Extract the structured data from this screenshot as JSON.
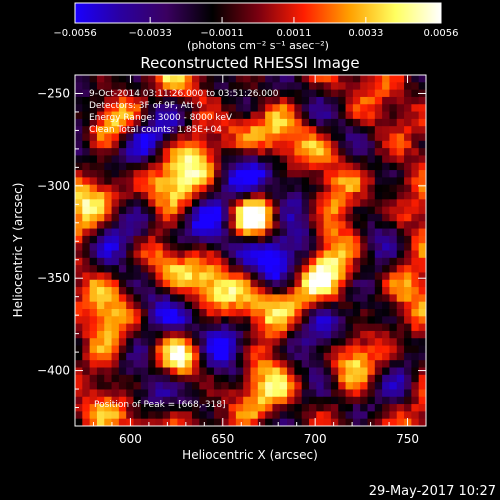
{
  "colorbar": {
    "ticks": [
      -0.0056,
      -0.0033,
      -0.0011,
      0.0011,
      0.0033,
      0.0056
    ],
    "tick_labels": [
      "−0.0056",
      "−0.0033",
      "−0.0011",
      "0.0011",
      "0.0033",
      "0.0056"
    ],
    "unit_label": "(photons cm⁻² s⁻¹ asec⁻²)",
    "range": [
      -0.0056,
      0.0056
    ],
    "colors": [
      "#1a00ff",
      "#2a00a0",
      "#3a0060",
      "#000000",
      "#7a0010",
      "#ff1e00",
      "#ffa000",
      "#ffff60",
      "#ffffff"
    ]
  },
  "chart_data": {
    "type": "heatmap",
    "title": "Reconstructed RHESSI Image",
    "xlabel": "Heliocentric X (arcsec)",
    "ylabel": "Heliocentric Y (arcsec)",
    "xlim": [
      570,
      760
    ],
    "ylim": [
      -430,
      -240
    ],
    "x_ticks": [
      600,
      650,
      700,
      750
    ],
    "y_ticks": [
      -250,
      -300,
      -350,
      -400
    ],
    "x_tick_labels": [
      "600",
      "650",
      "700",
      "750"
    ],
    "y_tick_labels": [
      "−250",
      "−300",
      "−350",
      "−400"
    ],
    "annotations": [
      " 9-Oct-2014 03:11:26.000 to 03:51:26.000",
      "Detectors: 3F of 9F, Att 0",
      "Energy Range: 3000 - 8000 keV",
      "Clean     Total counts: 1.85E+04"
    ],
    "peak_label": "Position of Peak = [668,-318]",
    "peak": [
      668,
      -318
    ],
    "sources": [
      {
        "x": 668,
        "y": -318,
        "amplitude": 0.0056
      },
      {
        "x": 628,
        "y": -392,
        "amplitude": 0.004
      },
      {
        "x": 590,
        "y": -265,
        "amplitude": 0.003
      },
      {
        "x": 610,
        "y": -335,
        "amplitude": 0.0025
      },
      {
        "x": 722,
        "y": -395,
        "amplitude": 0.0022
      }
    ]
  },
  "footer": {
    "timestamp": "29-May-2017 10:27"
  }
}
